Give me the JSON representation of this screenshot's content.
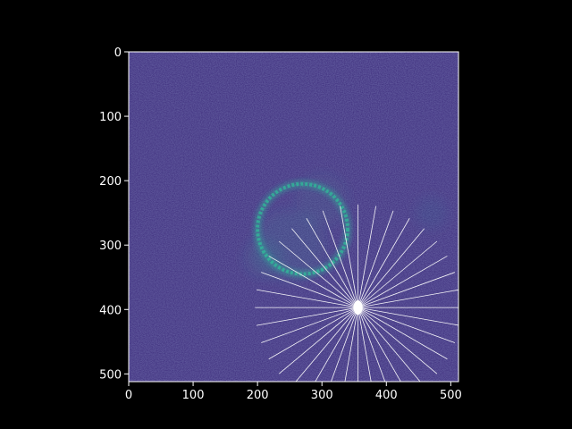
{
  "chart_data": {
    "type": "heatmap",
    "title": "",
    "xlabel": "",
    "ylabel": "",
    "colormap": "viridis",
    "image_size": [
      512,
      512
    ],
    "xlim": [
      0,
      512
    ],
    "ylim": [
      512,
      0
    ],
    "x_ticks": [
      0,
      100,
      200,
      300,
      400,
      500
    ],
    "y_ticks": [
      0,
      100,
      200,
      300,
      400,
      500
    ],
    "x_tick_labels": [
      "0",
      "100",
      "200",
      "300",
      "400",
      "500"
    ],
    "y_tick_labels": [
      "0",
      "100",
      "200",
      "300",
      "400",
      "500"
    ],
    "ring": {
      "center": [
        270,
        275
      ],
      "radius": 70
    },
    "rays": {
      "center": [
        356,
        397
      ],
      "ray_count": 36,
      "angle_step_deg": 10,
      "length": 160
    },
    "colors": {
      "background": "#000000",
      "image_base": "#3b2a7a",
      "ring": "#2fbf9a",
      "rays": "#ffffff",
      "axis": "#ffffff"
    }
  }
}
